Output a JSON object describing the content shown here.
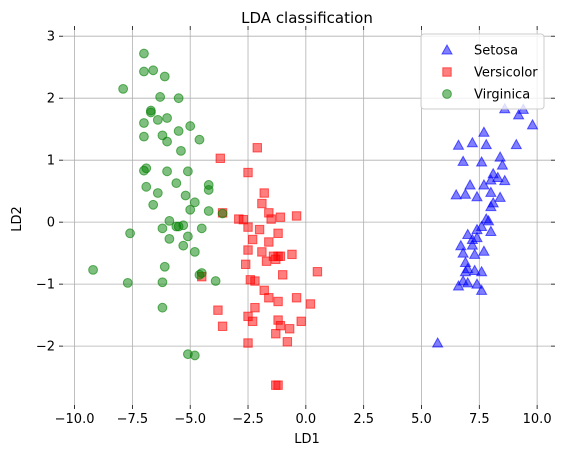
{
  "chart_data": {
    "type": "scatter",
    "title": "LDA classification",
    "xlabel": "LD1",
    "ylabel": "LD2",
    "xlim": [
      -10.5,
      10.6
    ],
    "ylim": [
      -2.95,
      3.1
    ],
    "xticks": [
      -10.0,
      -7.5,
      -5.0,
      -2.5,
      0.0,
      2.5,
      5.0,
      7.5,
      10.0
    ],
    "xtick_labels": [
      "−10.0",
      "−7.5",
      "−5.0",
      "−2.5",
      "0.0",
      "2.5",
      "5.0",
      "7.5",
      "10.0"
    ],
    "yticks": [
      -2,
      -1,
      0,
      1,
      2,
      3
    ],
    "ytick_labels": [
      "−2",
      "−1",
      "0",
      "1",
      "2",
      "3"
    ],
    "grid": true,
    "legend_position": "top-right",
    "series": [
      {
        "name": "Setosa",
        "marker": "triangle",
        "color": "#0000ff",
        "points": [
          [
            9.2,
            1.73
          ],
          [
            9.4,
            1.82
          ],
          [
            8.6,
            1.83
          ],
          [
            9.8,
            1.57
          ],
          [
            9.1,
            1.25
          ],
          [
            8.4,
            1.05
          ],
          [
            7.7,
            1.45
          ],
          [
            8.5,
            0.92
          ],
          [
            6.6,
            1.24
          ],
          [
            6.8,
            0.98
          ],
          [
            7.2,
            1.28
          ],
          [
            7.8,
            1.25
          ],
          [
            7.6,
            0.97
          ],
          [
            8.1,
            0.78
          ],
          [
            8.0,
            0.68
          ],
          [
            8.3,
            0.72
          ],
          [
            8.6,
            0.67
          ],
          [
            8.0,
            0.48
          ],
          [
            7.7,
            0.6
          ],
          [
            7.1,
            0.6
          ],
          [
            7.4,
            0.41
          ],
          [
            6.9,
            0.45
          ],
          [
            6.5,
            0.44
          ],
          [
            8.1,
            0.31
          ],
          [
            8.4,
            0.4
          ],
          [
            8.0,
            0.25
          ],
          [
            7.8,
            0.05
          ],
          [
            7.9,
            0.02
          ],
          [
            7.6,
            -0.07
          ],
          [
            7.4,
            -0.12
          ],
          [
            7.0,
            -0.2
          ],
          [
            8.0,
            -0.15
          ],
          [
            7.4,
            -0.25
          ],
          [
            6.7,
            -0.38
          ],
          [
            7.2,
            -0.28
          ],
          [
            7.2,
            -0.37
          ],
          [
            7.7,
            -0.47
          ],
          [
            6.8,
            -0.5
          ],
          [
            6.9,
            -0.65
          ],
          [
            7.0,
            -0.75
          ],
          [
            6.9,
            -0.8
          ],
          [
            7.3,
            -0.78
          ],
          [
            7.6,
            -0.8
          ],
          [
            6.6,
            -1.03
          ],
          [
            6.8,
            -0.95
          ],
          [
            7.0,
            -0.98
          ],
          [
            7.4,
            -1.0
          ],
          [
            7.6,
            -1.1
          ],
          [
            5.7,
            -1.95
          ],
          [
            7.3,
            -0.52
          ]
        ]
      },
      {
        "name": "Versicolor",
        "marker": "square",
        "color": "#ff0000",
        "points": [
          [
            -2.1,
            1.2
          ],
          [
            -3.7,
            1.03
          ],
          [
            -2.5,
            0.8
          ],
          [
            -1.8,
            0.47
          ],
          [
            -1.9,
            0.3
          ],
          [
            -3.6,
            0.15
          ],
          [
            -1.6,
            0.15
          ],
          [
            -2.9,
            0.05
          ],
          [
            -2.7,
            0.04
          ],
          [
            -1.1,
            0.08
          ],
          [
            -0.4,
            0.1
          ],
          [
            -1.5,
            0.05
          ],
          [
            -2.5,
            -0.08
          ],
          [
            -2.0,
            -0.12
          ],
          [
            -1.2,
            -0.18
          ],
          [
            -2.3,
            -0.28
          ],
          [
            -1.6,
            -0.32
          ],
          [
            -2.5,
            -0.45
          ],
          [
            -1.9,
            -0.48
          ],
          [
            -1.4,
            -0.55
          ],
          [
            -1.2,
            -0.55
          ],
          [
            -1.1,
            -0.55
          ],
          [
            -1.3,
            -0.6
          ],
          [
            -0.6,
            -0.52
          ],
          [
            -1.7,
            -0.63
          ],
          [
            -2.6,
            -0.68
          ],
          [
            -4.5,
            -0.88
          ],
          [
            -2.4,
            -0.93
          ],
          [
            -1.0,
            -0.85
          ],
          [
            0.5,
            -0.8
          ],
          [
            -2.2,
            -0.95
          ],
          [
            -1.8,
            -1.1
          ],
          [
            -1.6,
            -1.22
          ],
          [
            -1.2,
            -1.28
          ],
          [
            -0.4,
            -1.22
          ],
          [
            -2.2,
            -1.38
          ],
          [
            -3.8,
            -1.42
          ],
          [
            -2.5,
            -1.52
          ],
          [
            -2.3,
            -1.6
          ],
          [
            -1.2,
            -1.58
          ],
          [
            0.2,
            -1.32
          ],
          [
            -1.1,
            -1.67
          ],
          [
            -3.6,
            -1.68
          ],
          [
            -0.7,
            -1.72
          ],
          [
            -0.2,
            -1.6
          ],
          [
            -1.3,
            -1.8
          ],
          [
            -2.5,
            -1.95
          ],
          [
            -0.8,
            -1.93
          ],
          [
            -1.3,
            -2.63
          ],
          [
            -1.2,
            -2.63
          ]
        ]
      },
      {
        "name": "Virginica",
        "marker": "circle",
        "color": "#008000",
        "points": [
          [
            -7.0,
            2.72
          ],
          [
            -6.6,
            2.45
          ],
          [
            -7.0,
            2.43
          ],
          [
            -6.1,
            2.35
          ],
          [
            -7.9,
            2.15
          ],
          [
            -5.5,
            2.0
          ],
          [
            -6.3,
            2.02
          ],
          [
            -6.7,
            1.8
          ],
          [
            -6.7,
            1.77
          ],
          [
            -6.0,
            1.68
          ],
          [
            -6.4,
            1.65
          ],
          [
            -7.0,
            1.6
          ],
          [
            -5.0,
            1.55
          ],
          [
            -5.5,
            1.47
          ],
          [
            -6.2,
            1.4
          ],
          [
            -7.0,
            1.38
          ],
          [
            -4.6,
            1.33
          ],
          [
            -6.0,
            1.3
          ],
          [
            -5.4,
            1.15
          ],
          [
            -6.9,
            0.87
          ],
          [
            -6.0,
            0.82
          ],
          [
            -5.1,
            0.82
          ],
          [
            -7.0,
            0.83
          ],
          [
            -5.6,
            0.63
          ],
          [
            -4.2,
            0.6
          ],
          [
            -6.9,
            0.57
          ],
          [
            -4.2,
            0.52
          ],
          [
            -6.4,
            0.47
          ],
          [
            -5.2,
            0.43
          ],
          [
            -5.0,
            0.2
          ],
          [
            -6.6,
            0.28
          ],
          [
            -4.8,
            0.32
          ],
          [
            -4.2,
            0.18
          ],
          [
            -3.6,
            0.14
          ],
          [
            -5.9,
            0.02
          ],
          [
            -5.5,
            -0.07
          ],
          [
            -5.3,
            -0.05
          ],
          [
            -4.5,
            -0.1
          ],
          [
            -5.6,
            -0.07
          ],
          [
            -6.2,
            -0.1
          ],
          [
            -5.1,
            -0.23
          ],
          [
            -7.6,
            -0.18
          ],
          [
            -5.9,
            -0.27
          ],
          [
            -4.8,
            -0.48
          ],
          [
            -5.3,
            -0.38
          ],
          [
            -6.1,
            -0.72
          ],
          [
            -9.2,
            -0.77
          ],
          [
            -4.6,
            -0.85
          ],
          [
            -7.7,
            -0.98
          ],
          [
            -6.2,
            -0.97
          ],
          [
            -4.5,
            -0.82
          ],
          [
            -3.9,
            -0.95
          ],
          [
            -6.2,
            -1.38
          ],
          [
            -5.1,
            -2.13
          ],
          [
            -4.8,
            -2.15
          ]
        ]
      }
    ]
  }
}
